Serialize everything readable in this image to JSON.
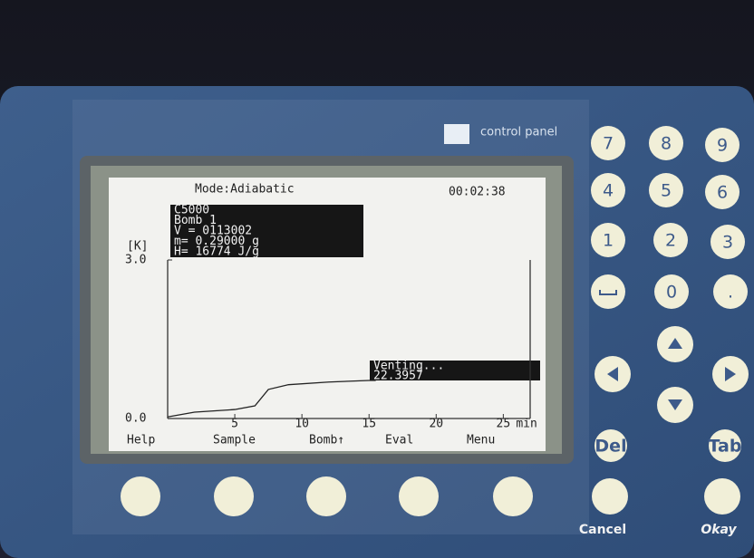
{
  "panel": {
    "brand": "control panel"
  },
  "screen": {
    "mode": "Mode:Adiabatic",
    "time": "00:02:38",
    "info": [
      "C5000",
      "Bomb 1",
      "V = 0113002",
      "m= 0.29000 g",
      "H= 16774 J/g"
    ],
    "chart": {
      "type": "line",
      "y_label": "[K]",
      "x_unit": "min",
      "xlim": [
        0,
        27
      ],
      "xticks": [
        5,
        10,
        15,
        20,
        25
      ],
      "ylim": [
        0,
        3
      ],
      "yticks": [
        {
          "value": 0,
          "label": "0.0"
        },
        {
          "value": 3,
          "label": "3.0"
        }
      ],
      "x": [
        0,
        2,
        5,
        6.5,
        7.5,
        9,
        12,
        15,
        15.5
      ],
      "values": [
        0.03,
        0.12,
        0.17,
        0.24,
        0.55,
        0.64,
        0.69,
        0.72,
        0.72
      ]
    },
    "status": [
      "Venting...",
      "22.3957"
    ],
    "softkeys": [
      "Help",
      "Sample",
      "Bomb↑",
      "Eval",
      "Menu"
    ]
  },
  "keypad": [
    "7",
    "8",
    "9",
    "4",
    "5",
    "6",
    "1",
    "2",
    "3",
    "0",
    ".",
    "Del",
    "Tab"
  ],
  "actions": [
    "Cancel",
    "Okay"
  ]
}
